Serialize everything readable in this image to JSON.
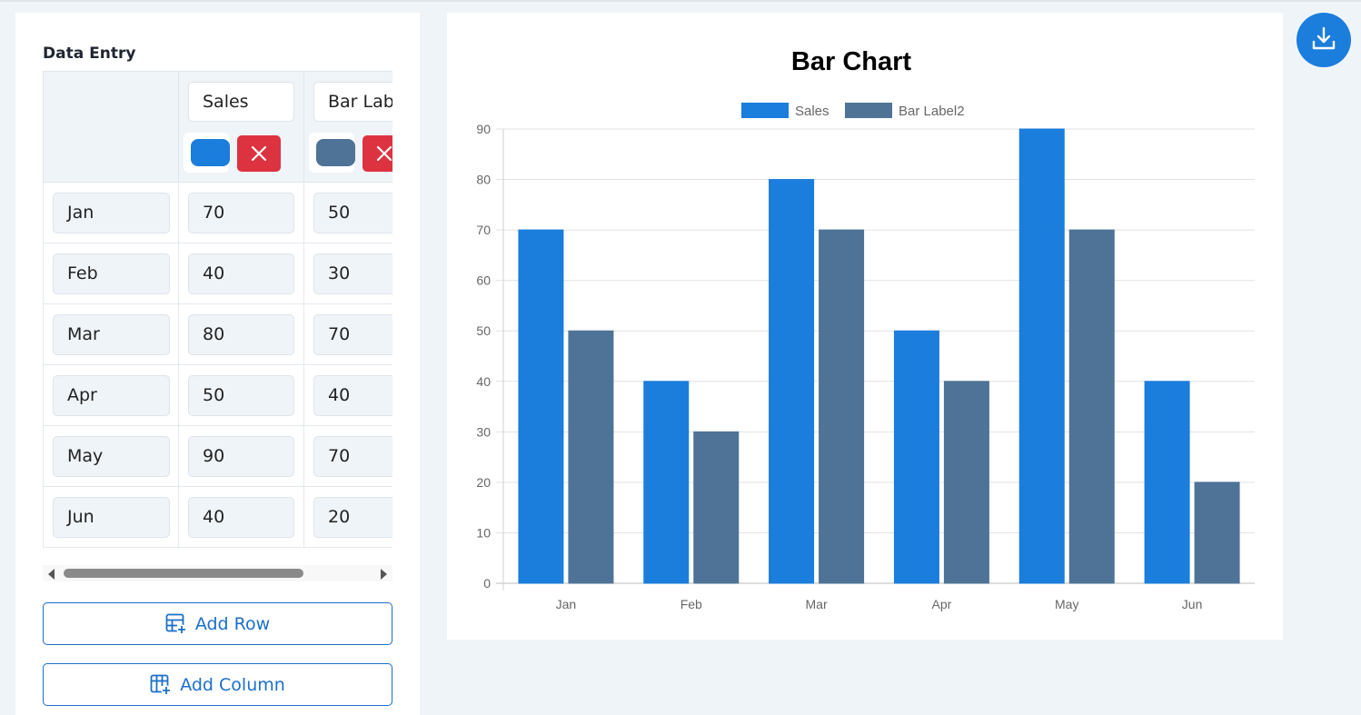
{
  "data_entry": {
    "title": "Data Entry",
    "columns": [
      {
        "name": "Sales",
        "color": "#1b7ddc"
      },
      {
        "name": "Bar Label2",
        "color": "#4f7396"
      }
    ],
    "rows": [
      {
        "label": "Jan",
        "values": [
          "70",
          "50"
        ]
      },
      {
        "label": "Feb",
        "values": [
          "40",
          "30"
        ]
      },
      {
        "label": "Mar",
        "values": [
          "80",
          "70"
        ]
      },
      {
        "label": "Apr",
        "values": [
          "50",
          "40"
        ]
      },
      {
        "label": "May",
        "values": [
          "90",
          "70"
        ]
      },
      {
        "label": "Jun",
        "values": [
          "40",
          "20"
        ]
      }
    ],
    "add_row_label": "Add Row",
    "add_column_label": "Add Column",
    "delete_color": "#dd3341",
    "accent_color": "#1b6fc9"
  },
  "download_icon": "download-icon",
  "chart_data": {
    "type": "bar",
    "title": "Bar Chart",
    "categories": [
      "Jan",
      "Feb",
      "Mar",
      "Apr",
      "May",
      "Jun"
    ],
    "series": [
      {
        "name": "Sales",
        "values": [
          70,
          40,
          80,
          50,
          90,
          40
        ],
        "color": "#1b7ddc"
      },
      {
        "name": "Bar Label2",
        "values": [
          50,
          30,
          70,
          40,
          70,
          20
        ],
        "color": "#4f7396"
      }
    ],
    "ylim": [
      0,
      90
    ],
    "yticks": [
      0,
      10,
      20,
      30,
      40,
      50,
      60,
      70,
      80,
      90
    ],
    "grid": true,
    "legend": "top-center"
  }
}
